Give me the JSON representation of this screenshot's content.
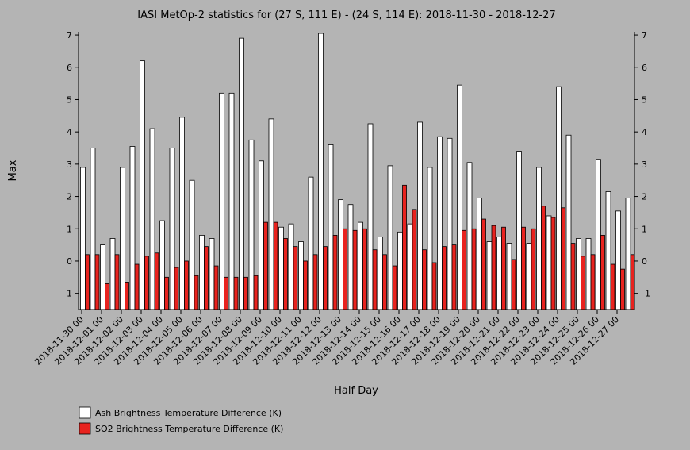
{
  "chart_data": {
    "type": "bar",
    "title": "IASI MetOp-2 statistics for (27 S, 111 E) - (24 S, 114 E): 2018-11-30 - 2018-12-27",
    "xlabel": "Half Day",
    "ylabel": "Max",
    "ylim": [
      -1.5,
      7.1
    ],
    "yticks": [
      -1,
      0,
      1,
      2,
      3,
      4,
      5,
      6,
      7
    ],
    "grid": false,
    "legend_position": "bottom-left",
    "x_tick_labels": [
      "2018-11-30 00",
      "2018-12-01 00",
      "2018-12-02 00",
      "2018-12-03 00",
      "2018-12-04 00",
      "2018-12-05 00",
      "2018-12-06 00",
      "2018-12-07 00",
      "2018-12-08 00",
      "2018-12-09 00",
      "2018-12-10 00",
      "2018-12-11 00",
      "2018-12-12 00",
      "2018-12-13 00",
      "2018-12-14 00",
      "2018-12-15 00",
      "2018-12-16 00",
      "2018-12-17 00",
      "2018-12-18 00",
      "2018-12-19 00",
      "2018-12-20 00",
      "2018-12-21 00",
      "2018-12-22 00",
      "2018-12-23 00",
      "2018-12-24 00",
      "2018-12-25 00",
      "2018-12-26 00",
      "2018-12-27 00"
    ],
    "series": [
      {
        "name": "Ash Brightness Temperature Difference (K)",
        "color": "#ffffff",
        "values": [
          2.9,
          3.5,
          0.5,
          0.7,
          2.9,
          3.55,
          6.2,
          4.1,
          1.25,
          3.5,
          4.45,
          2.5,
          0.8,
          0.7,
          5.2,
          5.2,
          6.9,
          3.75,
          3.1,
          4.4,
          1.05,
          1.15,
          0.6,
          2.6,
          7.05,
          3.6,
          1.9,
          1.75,
          1.2,
          4.25,
          0.75,
          2.95,
          0.9,
          1.15,
          4.3,
          2.9,
          3.85,
          3.8,
          5.45,
          3.05,
          1.95,
          0.6,
          0.75,
          0.55,
          3.4,
          0.55,
          2.9,
          1.4,
          5.4,
          3.9,
          0.7,
          0.7,
          3.15,
          2.15,
          1.55,
          1.95
        ]
      },
      {
        "name": "SO2 Brightness Temperature Difference (K)",
        "color": "#e8231f",
        "values": [
          0.2,
          0.2,
          -0.7,
          0.2,
          -0.65,
          -0.1,
          0.15,
          0.25,
          -0.5,
          -0.2,
          0.0,
          -0.45,
          0.45,
          -0.15,
          -0.5,
          -0.5,
          -0.5,
          -0.45,
          1.2,
          1.2,
          0.7,
          0.45,
          0.0,
          0.2,
          0.45,
          0.8,
          1.0,
          0.95,
          1.0,
          0.35,
          0.2,
          -0.15,
          2.35,
          1.6,
          0.35,
          -0.05,
          0.45,
          0.5,
          0.95,
          1.0,
          1.3,
          1.1,
          1.05,
          0.05,
          1.05,
          1.0,
          1.7,
          1.35,
          1.65,
          0.55,
          0.15,
          0.2,
          0.8,
          -0.1,
          -0.25,
          0.2
        ]
      }
    ]
  }
}
